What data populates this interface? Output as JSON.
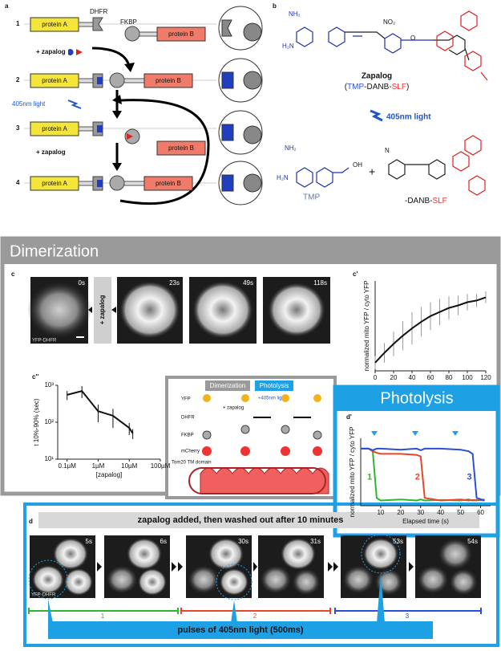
{
  "panel_a": {
    "label": "a",
    "steps": [
      "1",
      "2",
      "3",
      "4"
    ],
    "protein_a": "protein A",
    "protein_b": "protein B",
    "dhfr": "DHFR",
    "fkbp": "FKBP",
    "zapalog": "+ zapalog",
    "light": "405nm light"
  },
  "panel_b": {
    "label": "b",
    "name": "Zapalog",
    "formula": [
      "(",
      "TMP",
      "-DANB-",
      "SLF",
      ")"
    ],
    "light": "405nm light",
    "plus": "+",
    "product_left": "TMP",
    "product_right": [
      "-DANB-",
      "SLF"
    ],
    "atoms": [
      "NH₂",
      "H₂N",
      "O",
      "OH",
      "NO₂",
      "N"
    ]
  },
  "dimerization": {
    "title": "Dimerization",
    "label": "c",
    "times": [
      "0s",
      "23s",
      "49s",
      "118s"
    ],
    "zapalog": "+ zapalog",
    "cell_label": "YFP-DHFR"
  },
  "schematic": {
    "dimerization": "Dimerization",
    "photolysis": "Photolysis",
    "light": "+405nm light",
    "zapalog": "+ zapalog",
    "labels": [
      "YFP",
      "DHFR",
      "FKBP",
      "mCherry",
      "Tom20 TM domain"
    ]
  },
  "photolysis": {
    "title": "Photolysis"
  },
  "panel_d": {
    "label": "d",
    "banner": "zapalog added, then washed out after 10 minutes",
    "times": [
      "5s",
      "6s",
      "30s",
      "31s",
      "53s",
      "54s"
    ],
    "cell_label": "YFP-DHFR",
    "phases": [
      "1",
      "2",
      "3"
    ],
    "pulses": "pulses of 405nm light (500ms)"
  },
  "chart_data": [
    {
      "type": "line",
      "label": "c'",
      "ylabel": "normalized mito YFP / cyto YFP",
      "x": [
        0,
        10,
        20,
        30,
        40,
        50,
        60,
        70,
        80,
        90,
        100,
        110,
        120
      ],
      "values": [
        0.1,
        0.22,
        0.33,
        0.43,
        0.52,
        0.6,
        0.67,
        0.72,
        0.77,
        0.8,
        0.84,
        0.86,
        0.9
      ],
      "errors": [
        0.08,
        0.12,
        0.15,
        0.18,
        0.2,
        0.18,
        0.17,
        0.16,
        0.14,
        0.12,
        0.1,
        0.08,
        0.07
      ],
      "color": "#111111",
      "error_color": "#9a9a9a",
      "xlim": [
        0,
        120
      ],
      "xticks": [
        0,
        20,
        40,
        60,
        80,
        100,
        120
      ],
      "ylim": [
        0,
        1.1
      ]
    },
    {
      "type": "line",
      "label": "c''",
      "xlabel": "[zapalog]",
      "ylabel": "t 10%-90% (sec)",
      "log_x": true,
      "log_y": true,
      "x": [
        0.1,
        0.3,
        1,
        3,
        10,
        13
      ],
      "values": [
        550,
        700,
        200,
        150,
        70,
        50
      ],
      "errors": [
        150,
        250,
        100,
        80,
        25,
        15
      ],
      "color": "#111111",
      "error_color": "#111111",
      "xlim": [
        0.05,
        100
      ],
      "xticks": [
        {
          "value": 0.1,
          "label": "0.1µM"
        },
        {
          "value": 1,
          "label": "1µM"
        },
        {
          "value": 10,
          "label": "10µM"
        },
        {
          "value": 100,
          "label": "100µM"
        }
      ],
      "ylim": [
        10,
        1000
      ],
      "yticks": [
        {
          "value": 10,
          "label": "10¹"
        },
        {
          "value": 100,
          "label": "10²"
        },
        {
          "value": 1000,
          "label": "10³"
        }
      ]
    },
    {
      "type": "line",
      "label": "d'",
      "xlabel": "Elapsed time (s)",
      "ylabel": "normalized mito YFP / cyto YFP",
      "x": [
        0,
        4,
        6,
        8,
        10,
        20,
        28,
        30,
        32,
        40,
        50,
        54,
        56,
        58,
        62
      ],
      "series": [
        {
          "name": "1",
          "color": "#2fb52f",
          "values": [
            1,
            1,
            0.95,
            0.05,
            0,
            0.02,
            0,
            0.02,
            0,
            0.01,
            0,
            0.02,
            0,
            0.01,
            0
          ]
        },
        {
          "name": "2",
          "color": "#e8452c",
          "values": [
            1,
            1,
            0.95,
            0.92,
            0.9,
            0.9,
            0.88,
            0.85,
            0.05,
            0,
            0.02,
            0,
            0.01,
            0,
            0.02
          ]
        },
        {
          "name": "3",
          "color": "#2a4fd6",
          "values": [
            1,
            1,
            0.97,
            1,
            1,
            0.98,
            1,
            0.97,
            1,
            1,
            0.98,
            0.95,
            0.9,
            0.05,
            0
          ]
        }
      ],
      "xlim": [
        0,
        65
      ],
      "xticks": [
        10,
        20,
        30,
        40,
        50,
        60
      ],
      "ylim": [
        -0.1,
        1.2
      ]
    }
  ]
}
